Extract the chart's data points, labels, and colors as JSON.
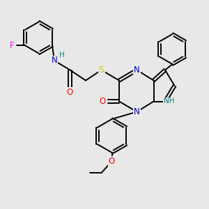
{
  "background_color": "#e8e8e8",
  "bond_color": "#000000",
  "atom_colors": {
    "N": "#0000cc",
    "O": "#ff0000",
    "S": "#cccc00",
    "F": "#ff00ff",
    "NH": "#008080",
    "C": "#000000"
  }
}
